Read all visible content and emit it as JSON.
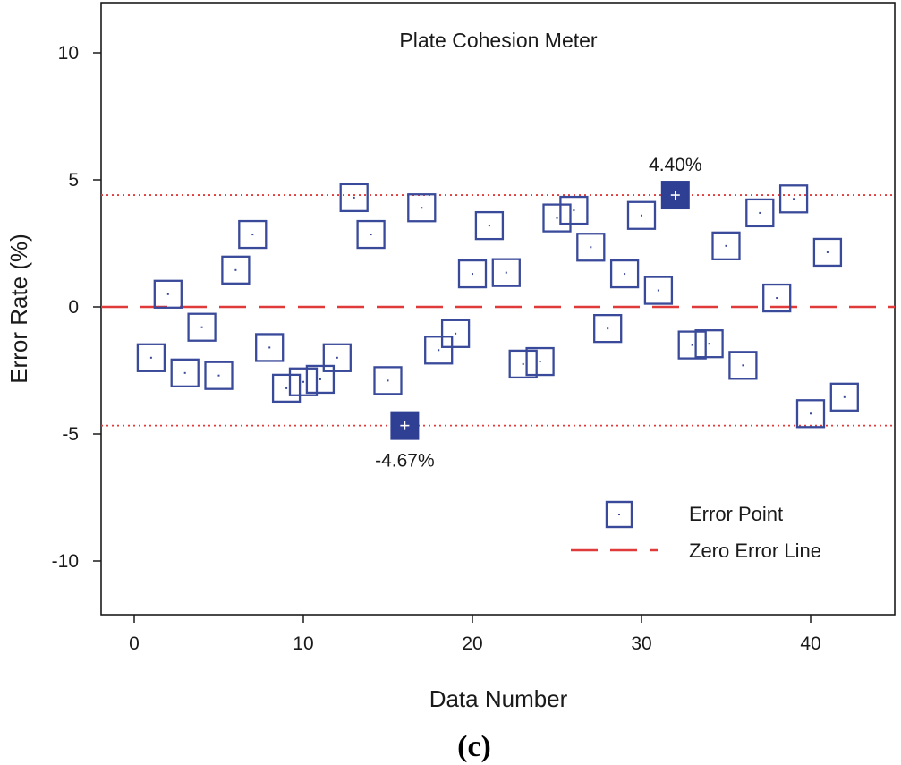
{
  "chart_data": {
    "type": "scatter",
    "title": "Plate Cohesion Meter",
    "xlabel": "Data Number",
    "ylabel": "Error Rate (%)",
    "xlim": [
      -2,
      45
    ],
    "ylim": [
      -12,
      12
    ],
    "x_ticks": [
      0,
      10,
      20,
      30,
      40
    ],
    "y_ticks": [
      -10,
      -5,
      0,
      5,
      10
    ],
    "x_tick_labels": [
      "0",
      "10",
      "20",
      "30",
      "40"
    ],
    "y_tick_labels": [
      "-10",
      "-5",
      "0",
      "5",
      "10"
    ],
    "series": [
      {
        "name": "Error Point",
        "marker": "open-square",
        "x": [
          1,
          2,
          3,
          4,
          5,
          6,
          7,
          8,
          9,
          10,
          11,
          12,
          13,
          14,
          15,
          16,
          17,
          18,
          19,
          20,
          21,
          22,
          23,
          24,
          25,
          26,
          27,
          28,
          29,
          30,
          31,
          32,
          33,
          34,
          35,
          36,
          37,
          38,
          39,
          40,
          41,
          42
        ],
        "y": [
          -2.0,
          0.5,
          -2.6,
          -0.8,
          -2.7,
          1.45,
          2.85,
          -1.6,
          -3.2,
          -2.95,
          -2.85,
          -2.0,
          4.3,
          2.85,
          -2.9,
          -4.67,
          3.9,
          -1.7,
          -1.05,
          1.3,
          3.2,
          1.35,
          -2.25,
          -2.15,
          3.5,
          3.8,
          2.35,
          -0.85,
          1.3,
          3.6,
          0.65,
          4.4,
          -1.5,
          -1.45,
          2.4,
          -2.3,
          3.7,
          0.35,
          4.25,
          -4.2,
          2.15,
          -3.55
        ]
      }
    ],
    "highlighted_points": [
      {
        "x": 32,
        "y": 4.4,
        "label": "4.40%",
        "label_position": "above"
      },
      {
        "x": 16,
        "y": -4.67,
        "label": "-4.67%",
        "label_position": "below"
      }
    ],
    "reference_lines": [
      {
        "name": "Zero Error Line",
        "y": 0,
        "style": "dashed",
        "color": "#e03a3a"
      },
      {
        "name": "max-bound",
        "y": 4.4,
        "style": "dotted",
        "color": "#e03a3a"
      },
      {
        "name": "min-bound",
        "y": -4.67,
        "style": "dotted",
        "color": "#e03a3a"
      }
    ],
    "legend": {
      "position": "bottom-right",
      "entries": [
        {
          "label": "Error Point",
          "symbol": "open-square"
        },
        {
          "label": "Zero Error Line",
          "symbol": "dashed-line"
        }
      ]
    },
    "grid": false
  },
  "panel_label": "(c)",
  "colors": {
    "marker": "#3a4a9a",
    "highlight_fill": "#2f3f94",
    "reference_line": "#e03a3a",
    "axis": "#1a1a1a"
  }
}
